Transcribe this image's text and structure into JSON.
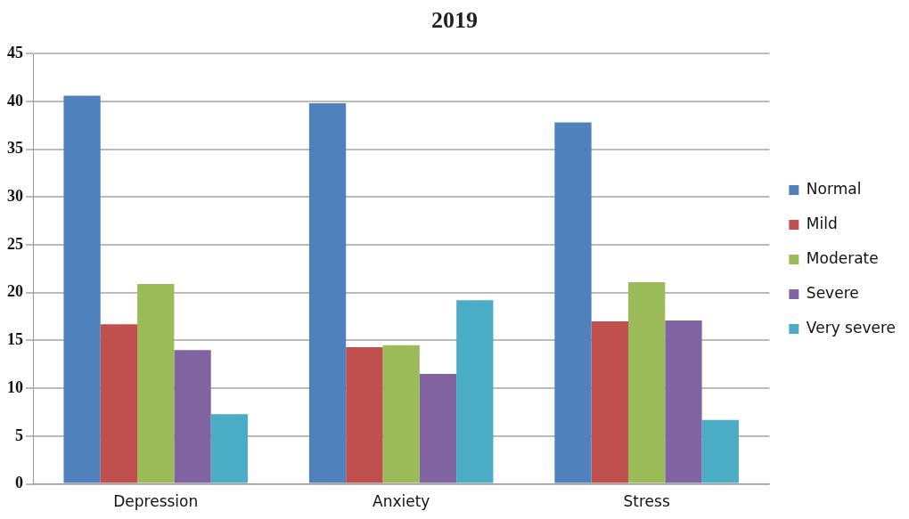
{
  "chart_data": {
    "type": "bar",
    "title": "2019",
    "categories": [
      "Depression",
      "Anxiety",
      "Stress"
    ],
    "series": [
      {
        "name": "Normal",
        "color": "#4f81bd",
        "values": [
          40.6,
          39.8,
          37.8
        ]
      },
      {
        "name": "Mild",
        "color": "#c0504d",
        "values": [
          16.7,
          14.3,
          17.0
        ]
      },
      {
        "name": "Moderate",
        "color": "#9bbb59",
        "values": [
          20.9,
          14.5,
          21.1
        ]
      },
      {
        "name": "Severe",
        "color": "#8064a2",
        "values": [
          14.0,
          11.5,
          17.1
        ]
      },
      {
        "name": "Very severe",
        "color": "#4bacc6",
        "values": [
          7.3,
          19.2,
          6.7
        ]
      }
    ],
    "ylim": [
      0,
      45
    ],
    "yticks": [
      0,
      5,
      10,
      15,
      20,
      25,
      30,
      35,
      40,
      45
    ],
    "grid": "y",
    "legend": "right"
  }
}
